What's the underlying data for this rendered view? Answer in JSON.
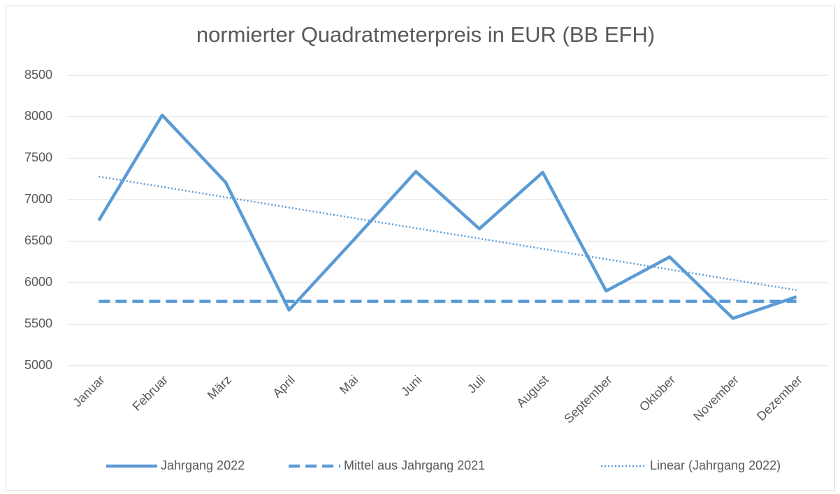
{
  "chart_data": {
    "type": "line",
    "title": "normierter Quadratmeterpreis in EUR (BB EFH)",
    "categories": [
      "Januar",
      "Februar",
      "März",
      "April",
      "Mai",
      "Juni",
      "Juli",
      "August",
      "September",
      "Oktober",
      "November",
      "Dezember"
    ],
    "series": [
      {
        "name": "Jahrgang 2022",
        "color": "#5b9bd5",
        "style": "solid",
        "values": [
          6750,
          8020,
          7210,
          5670,
          6500,
          7340,
          6650,
          7330,
          5900,
          6310,
          5570,
          5830
        ]
      },
      {
        "name": "Mittel aus Jahrgang 2021",
        "color": "#5b9bd5",
        "style": "dashed",
        "values": [
          5775,
          5775,
          5775,
          5775,
          5775,
          5775,
          5775,
          5775,
          5775,
          5775,
          5775,
          5775
        ]
      },
      {
        "name": "Linear (Jahrgang 2022)",
        "color": "#5b9bd5",
        "style": "dotted",
        "values": [
          7280,
          7155,
          7031,
          6906,
          6782,
          6657,
          6533,
          6408,
          6284,
          6159,
          6035,
          5910
        ]
      }
    ],
    "ylim": [
      5000,
      8500
    ],
    "yticks": [
      5000,
      5500,
      6000,
      6500,
      7000,
      7500,
      8000,
      8500
    ],
    "grid": true,
    "legend": "bottom"
  }
}
